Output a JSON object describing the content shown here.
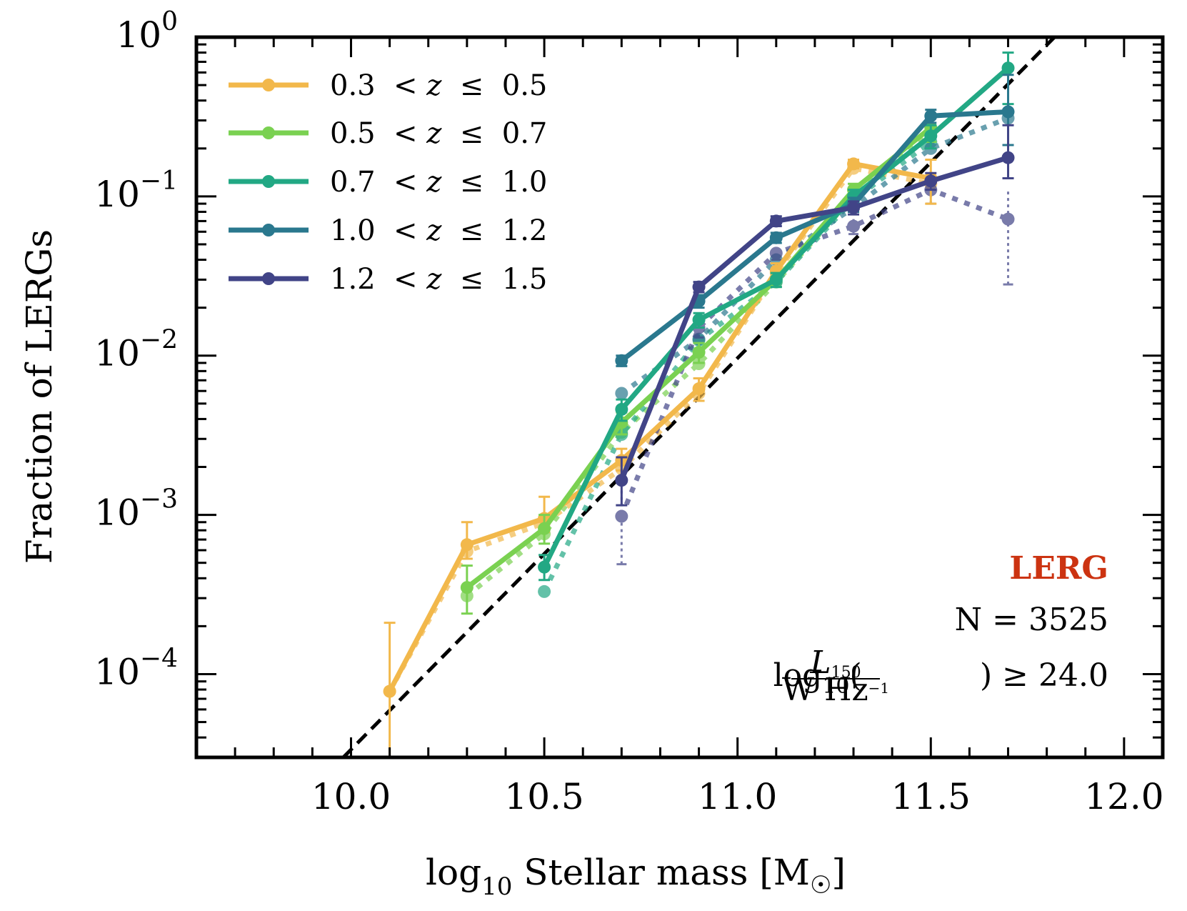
{
  "chart_data": {
    "type": "line",
    "title": "",
    "xlabel": "log10 Stellar mass [M☉]",
    "xlabel_parts": {
      "pre": "log",
      "sub": "10",
      "post": " Stellar mass [M",
      "sun": "☉",
      "close": "]"
    },
    "ylabel": "Fraction of LERGs",
    "xscale": "linear",
    "yscale": "log",
    "xlim": [
      9.6,
      12.1
    ],
    "ylim": [
      3e-05,
      1.0
    ],
    "x_ticks": [
      {
        "value": 10.0,
        "label": "10.0"
      },
      {
        "value": 10.5,
        "label": "10.5"
      },
      {
        "value": 11.0,
        "label": "11.0"
      },
      {
        "value": 11.5,
        "label": "11.5"
      },
      {
        "value": 12.0,
        "label": "12.0"
      }
    ],
    "y_ticks": [
      {
        "value": 1.0,
        "base": "10",
        "exp": "0"
      },
      {
        "value": 0.1,
        "base": "10",
        "exp": "−1"
      },
      {
        "value": 0.01,
        "base": "10",
        "exp": "−2"
      },
      {
        "value": 0.001,
        "base": "10",
        "exp": "−3"
      },
      {
        "value": 0.0001,
        "base": "10",
        "exp": "−4"
      }
    ],
    "grid": false,
    "legend_position": "top-left",
    "series": [
      {
        "name": "0.3 < z ≤ 0.5",
        "legend": {
          "lo": "0.3",
          "hi": "0.5"
        },
        "color": "#F2B84B",
        "x": [
          10.1,
          10.3,
          10.5,
          10.7,
          10.9,
          11.1,
          11.3,
          11.5
        ],
        "y": [
          7.8e-05,
          0.00065,
          0.00095,
          0.0022,
          0.0062,
          0.034,
          0.16,
          0.13
        ],
        "yerr_low": [
          3e-05,
          0.00053,
          0.00078,
          0.0019,
          0.0052,
          0.03,
          0.15,
          0.09
        ],
        "yerr_high": [
          0.00021,
          0.0009,
          0.0013,
          0.0026,
          0.0072,
          0.038,
          0.17,
          0.17
        ],
        "dotted_x": [
          10.1,
          10.3,
          10.5,
          10.7,
          10.9,
          11.1,
          11.3,
          11.5
        ],
        "dotted_y": [
          7.8e-05,
          0.00059,
          0.00089,
          0.00195,
          0.0058,
          0.033,
          0.15,
          0.12
        ]
      },
      {
        "name": "0.5 < z ≤ 0.7",
        "legend": {
          "lo": "0.5",
          "hi": "0.7"
        },
        "color": "#7AD151",
        "x": [
          10.3,
          10.5,
          10.7,
          10.9,
          11.1,
          11.3,
          11.5
        ],
        "y": [
          0.00035,
          0.00082,
          0.0038,
          0.0105,
          0.03,
          0.11,
          0.27
        ],
        "yerr_low": [
          0.00024,
          0.00066,
          0.0032,
          0.009,
          0.027,
          0.1,
          0.22
        ],
        "yerr_high": [
          0.00048,
          0.001,
          0.0044,
          0.012,
          0.033,
          0.12,
          0.32
        ],
        "dotted_x": [
          10.3,
          10.5,
          10.7,
          10.9,
          11.1,
          11.3,
          11.5
        ],
        "dotted_y": [
          0.00031,
          0.00076,
          0.0033,
          0.0089,
          0.029,
          0.1,
          0.25
        ]
      },
      {
        "name": "0.7 < z ≤ 1.0",
        "legend": {
          "lo": "0.7",
          "hi": "1.0"
        },
        "color": "#22A884",
        "x": [
          10.5,
          10.7,
          10.9,
          11.1,
          11.3,
          11.5,
          11.7
        ],
        "y": [
          0.00047,
          0.0046,
          0.0168,
          0.03,
          0.1,
          0.24,
          0.64
        ],
        "yerr_low": [
          0.00039,
          0.0039,
          0.015,
          0.027,
          0.09,
          0.2,
          0.38
        ],
        "yerr_high": [
          0.00056,
          0.0053,
          0.0185,
          0.033,
          0.11,
          0.28,
          0.8
        ],
        "dotted_x": [
          10.5,
          10.7,
          10.9,
          11.1,
          11.3,
          11.5
        ],
        "dotted_y": [
          0.00033,
          0.0032,
          0.0125,
          0.029,
          0.095,
          0.22
        ]
      },
      {
        "name": "1.0 < z ≤ 1.2",
        "legend": {
          "lo": "1.0",
          "hi": "1.2"
        },
        "color": "#2A788E",
        "x": [
          10.7,
          10.9,
          11.1,
          11.3,
          11.5,
          11.7
        ],
        "y": [
          0.0093,
          0.022,
          0.055,
          0.089,
          0.32,
          0.34
        ],
        "yerr_low": [
          0.0086,
          0.02,
          0.051,
          0.08,
          0.29,
          0.21
        ],
        "yerr_high": [
          0.01,
          0.024,
          0.059,
          0.098,
          0.35,
          0.58
        ],
        "dotted_x": [
          10.7,
          10.9,
          11.1,
          11.3,
          11.5,
          11.7
        ],
        "dotted_y": [
          0.0058,
          0.0127,
          0.04,
          0.085,
          0.2,
          0.31
        ]
      },
      {
        "name": "1.2 < z ≤ 1.5",
        "legend": {
          "lo": "1.2",
          "hi": "1.5"
        },
        "color": "#414487",
        "x": [
          10.7,
          10.9,
          11.1,
          11.3,
          11.5,
          11.7
        ],
        "y": [
          0.00165,
          0.027,
          0.07,
          0.085,
          0.125,
          0.175
        ],
        "yerr_low": [
          0.00115,
          0.025,
          0.065,
          0.077,
          0.11,
          0.13
        ],
        "yerr_high": [
          0.0023,
          0.029,
          0.075,
          0.093,
          0.14,
          0.28
        ],
        "dotted_x": [
          10.7,
          10.9,
          11.1,
          11.3,
          11.5,
          11.7
        ],
        "dotted_y": [
          0.00098,
          0.015,
          0.044,
          0.065,
          0.11,
          0.072
        ],
        "dotted_err_low": [
          0.00049,
          0.013,
          0.04,
          0.058,
          0.09,
          0.028
        ],
        "dotted_err_high": [
          0.0016,
          0.017,
          0.048,
          0.072,
          0.13,
          0.11
        ]
      }
    ],
    "reference_line": {
      "style": "dashed",
      "color": "#000000",
      "description": "log10 f = 2.5 (M - 11.8)",
      "x": [
        9.98,
        11.82
      ],
      "y": [
        3e-05,
        1.0
      ]
    },
    "annotations": {
      "title": "LERG",
      "title_color": "#CC3311",
      "count": "N = 3525",
      "count_label": "N",
      "count_value": "3525",
      "cut_text": "log10(L150 / W Hz−1) ≥ 24.0",
      "cut_parts": {
        "log": "log",
        "sub": "10",
        "num": "L",
        "num_sub": "150",
        "den": "W Hz",
        "den_sup": "−1",
        "rel": "≥",
        "value": "24.0"
      }
    }
  }
}
